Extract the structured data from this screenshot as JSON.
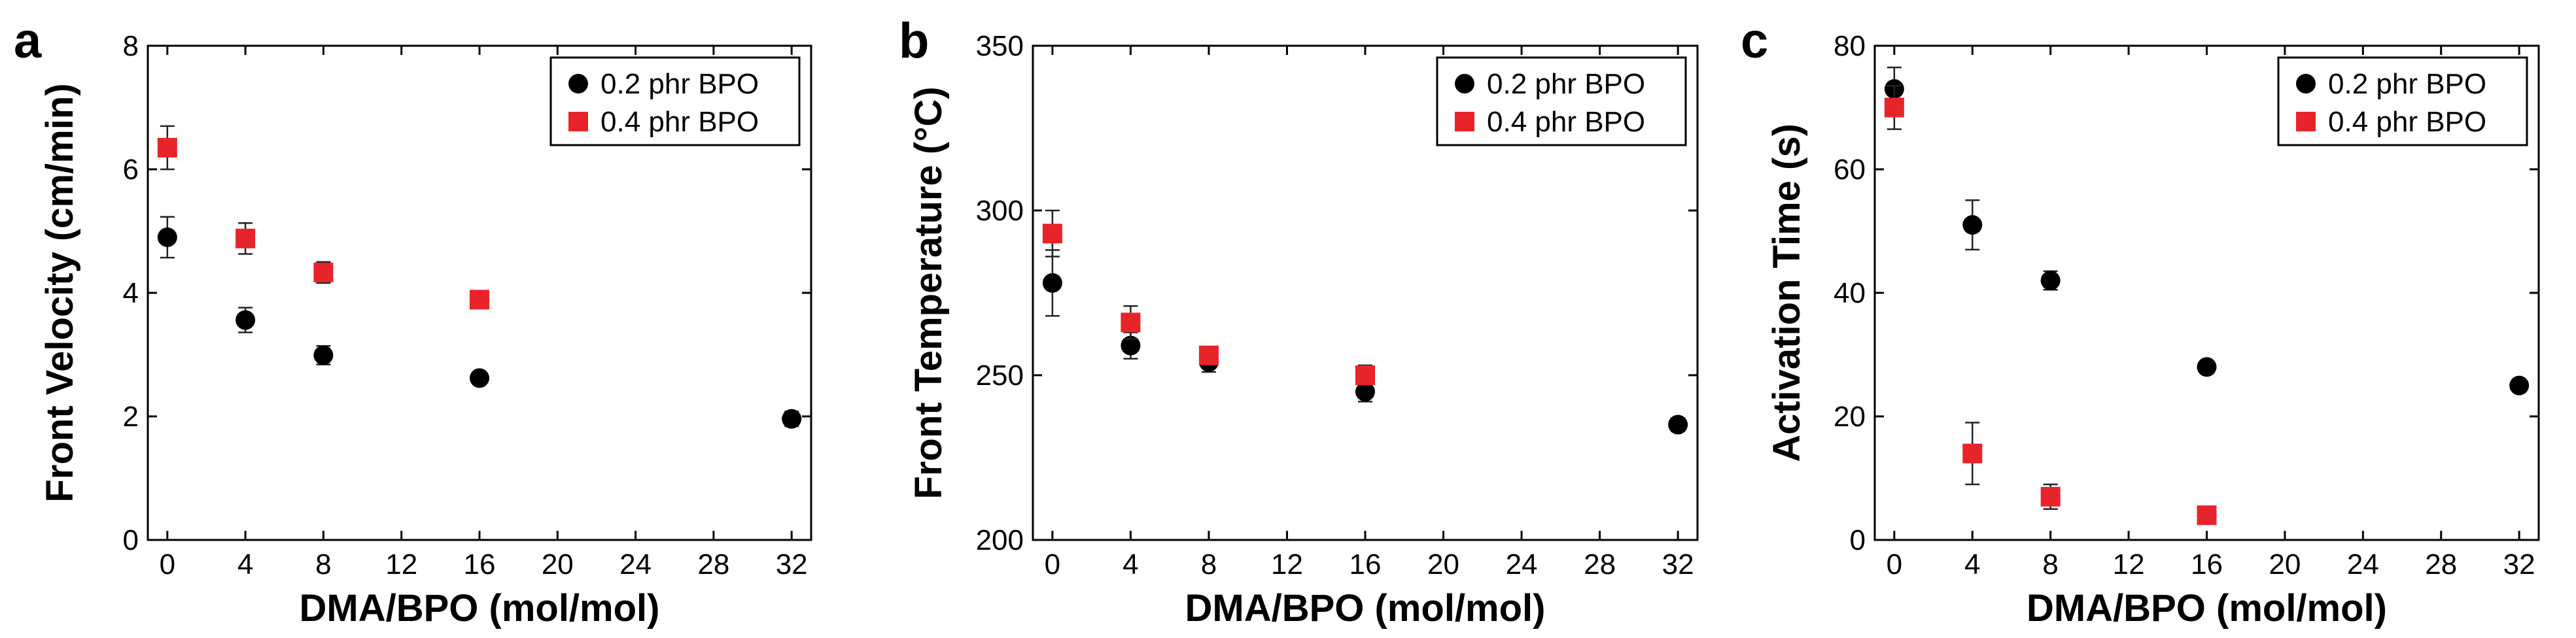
{
  "chart_data": [
    {
      "type": "scatter",
      "panel_label": "a",
      "title": "",
      "xlabel": "DMA/BPO (mol/mol)",
      "ylabel": "Front Velocity (cm/min)",
      "xlim": [
        -1,
        33
      ],
      "ylim": [
        0,
        8
      ],
      "xticks": [
        "0",
        "4",
        "8",
        "12",
        "16",
        "20",
        "24",
        "28",
        "32"
      ],
      "yticks": [
        "0",
        "2",
        "4",
        "6",
        "8"
      ],
      "legend_position": "top-right",
      "series": [
        {
          "name": "0.2 phr BPO",
          "marker": "circle",
          "color": "#000000",
          "points": [
            {
              "x": 0,
              "y": 4.9,
              "err": 0.33
            },
            {
              "x": 4,
              "y": 3.56,
              "err": 0.2
            },
            {
              "x": 8,
              "y": 2.99,
              "err": 0.15
            },
            {
              "x": 16,
              "y": 2.62,
              "err": 0.08
            },
            {
              "x": 32,
              "y": 1.96,
              "err": 0.12
            }
          ]
        },
        {
          "name": "0.4 phr BPO",
          "marker": "square",
          "color": "#e8242b",
          "points": [
            {
              "x": 0,
              "y": 6.35,
              "err": 0.35
            },
            {
              "x": 4,
              "y": 4.88,
              "err": 0.25
            },
            {
              "x": 8,
              "y": 4.33,
              "err": 0.17
            },
            {
              "x": 16,
              "y": 3.89,
              "err": 0.07
            }
          ]
        }
      ]
    },
    {
      "type": "scatter",
      "panel_label": "b",
      "title": "",
      "xlabel": "DMA/BPO (mol/mol)",
      "ylabel": "Front Temperature (°C)",
      "xlim": [
        -1,
        33
      ],
      "ylim": [
        200,
        350
      ],
      "xticks": [
        "0",
        "4",
        "8",
        "12",
        "16",
        "20",
        "24",
        "28",
        "32"
      ],
      "yticks": [
        "200",
        "250",
        "300",
        "350"
      ],
      "legend_position": "top-right",
      "series": [
        {
          "name": "0.2 phr BPO",
          "marker": "circle",
          "color": "#000000",
          "points": [
            {
              "x": 0,
              "y": 278,
              "err": 10
            },
            {
              "x": 4,
              "y": 259,
              "err": 4
            },
            {
              "x": 8,
              "y": 254,
              "err": 3
            },
            {
              "x": 16,
              "y": 245,
              "err": 3
            },
            {
              "x": 32,
              "y": 235,
              "err": 2
            }
          ]
        },
        {
          "name": "0.4 phr BPO",
          "marker": "square",
          "color": "#e8242b",
          "points": [
            {
              "x": 0,
              "y": 293,
              "err": 7
            },
            {
              "x": 4,
              "y": 266,
              "err": 5
            },
            {
              "x": 8,
              "y": 256,
              "err": 2
            },
            {
              "x": 16,
              "y": 250,
              "err": 3
            }
          ]
        }
      ]
    },
    {
      "type": "scatter",
      "panel_label": "c",
      "title": "",
      "xlabel": "DMA/BPO (mol/mol)",
      "ylabel": "Activation Time (s)",
      "xlim": [
        -1,
        33
      ],
      "ylim": [
        0,
        80
      ],
      "xticks": [
        "0",
        "4",
        "8",
        "12",
        "16",
        "20",
        "24",
        "28",
        "32"
      ],
      "yticks": [
        "0",
        "20",
        "40",
        "60",
        "80"
      ],
      "legend_position": "top-right",
      "series": [
        {
          "name": "0.2 phr BPO",
          "marker": "circle",
          "color": "#000000",
          "points": [
            {
              "x": 0,
              "y": 73,
              "err": 3.5
            },
            {
              "x": 4,
              "y": 51,
              "err": 4
            },
            {
              "x": 8,
              "y": 42,
              "err": 1.5
            },
            {
              "x": 16,
              "y": 28,
              "err": 0.8
            },
            {
              "x": 32,
              "y": 25,
              "err": 0.8
            }
          ]
        },
        {
          "name": "0.4 phr BPO",
          "marker": "square",
          "color": "#e8242b",
          "points": [
            {
              "x": 0,
              "y": 70,
              "err": 3.5
            },
            {
              "x": 4,
              "y": 14,
              "err": 5
            },
            {
              "x": 8,
              "y": 7,
              "err": 2
            },
            {
              "x": 16,
              "y": 4,
              "err": 1
            }
          ]
        }
      ]
    }
  ]
}
